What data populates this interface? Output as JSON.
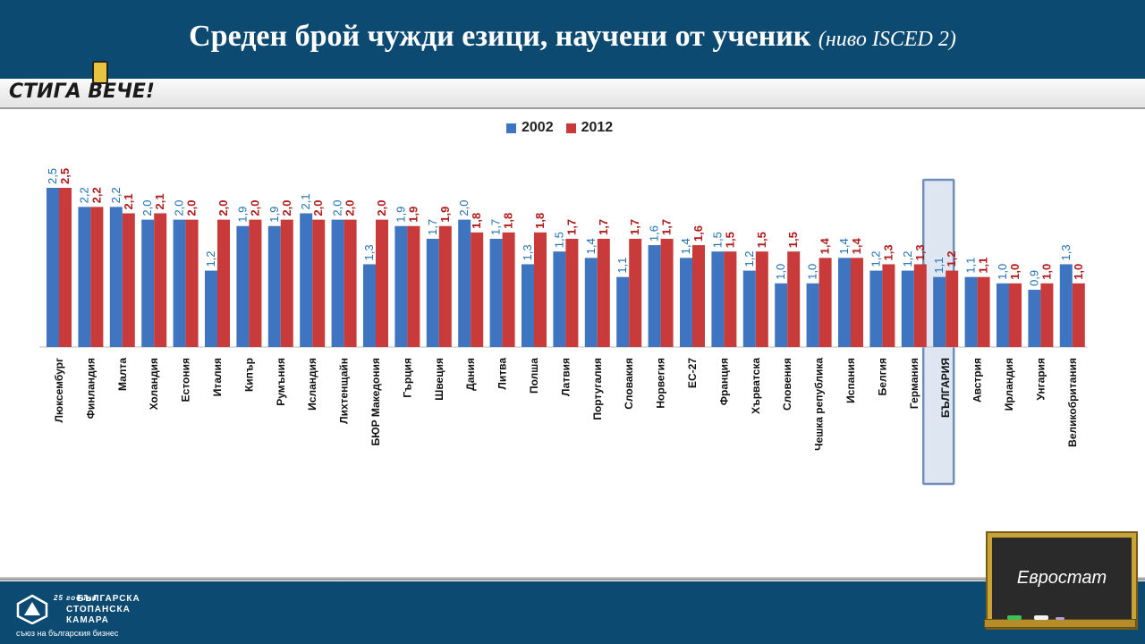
{
  "header": {
    "title": "Среден брой чужди езици, научени от ученик",
    "subtitle": "(ниво ISCED 2)"
  },
  "banner": {
    "logo_text": "СТИГА ВЕЧЕ!"
  },
  "footer": {
    "org_line1": "БЪЛГАРСКА",
    "org_line2": "СТОПАНСКА",
    "org_line3": "КАМАРА",
    "org_years": "25 години",
    "org_tagline": "съюз на българския бизнес",
    "source_label": "Евростат"
  },
  "colors": {
    "series_2002": "#3f74c0",
    "series_2012": "#c93b3b",
    "label_2002": "#1f6fae",
    "label_2012": "#b01c1c",
    "highlight_border": "#6f8fb8"
  },
  "chart_data": {
    "type": "bar",
    "title": "Среден брой чужди езици, научени от ученик (ниво ISCED 2)",
    "categories": [
      "Люксембург",
      "Финландия",
      "Малта",
      "Холандия",
      "Естония",
      "Италия",
      "Кипър",
      "Румъния",
      "Исландия",
      "Лихтенщайн",
      "БЮР Македония",
      "Гърция",
      "Швеция",
      "Дания",
      "Литва",
      "Полша",
      "Латвия",
      "Португалия",
      "Словакия",
      "Норвегия",
      "ЕС-27",
      "Франция",
      "Хърватска",
      "Словения",
      "Чешка република",
      "Испания",
      "Белгия",
      "Германия",
      "БЪЛГАРИЯ",
      "Австрия",
      "Ирландия",
      "Унгария",
      "Великобритания"
    ],
    "series": [
      {
        "name": "2002",
        "values": [
          2.5,
          2.2,
          2.2,
          2.0,
          2.0,
          1.2,
          1.9,
          1.9,
          2.1,
          2.0,
          1.3,
          1.9,
          1.7,
          2.0,
          1.7,
          1.3,
          1.5,
          1.4,
          1.1,
          1.6,
          1.4,
          1.5,
          1.2,
          1.0,
          1.0,
          1.4,
          1.2,
          1.2,
          1.1,
          1.1,
          1.0,
          0.9,
          1.3
        ]
      },
      {
        "name": "2012",
        "values": [
          2.5,
          2.2,
          2.1,
          2.1,
          2.0,
          2.0,
          2.0,
          2.0,
          2.0,
          2.0,
          2.0,
          1.9,
          1.9,
          1.8,
          1.8,
          1.8,
          1.7,
          1.7,
          1.7,
          1.7,
          1.6,
          1.5,
          1.5,
          1.5,
          1.4,
          1.4,
          1.3,
          1.3,
          1.2,
          1.1,
          1.0,
          1.0,
          1.0
        ]
      }
    ],
    "data_labels": {
      "2002": [
        "2,5",
        "2,2",
        "2,2",
        "2,0",
        "2,0",
        "1,2",
        "1,9",
        "1,9",
        "2,1",
        "2,0",
        "1,3",
        "1,9",
        "1,7",
        "2,0",
        "1,7",
        "1,3",
        "1,5",
        "1,4",
        "1,1",
        "1,6",
        "1,4",
        "1,5",
        "1,2",
        "1,0",
        "1,0",
        "1,4",
        "1,2",
        "1,2",
        "1,1",
        "1,1",
        "1,0",
        "0,9",
        "1,3"
      ],
      "2012": [
        "2,5",
        "2,2",
        "2,1",
        "2,1",
        "2,0",
        "2,0",
        "2,0",
        "2,0",
        "2,0",
        "2,0",
        "2,0",
        "1,9",
        "1,9",
        "1,8",
        "1,8",
        "1,8",
        "1,7",
        "1,7",
        "1,7",
        "1,7",
        "1,6",
        "1,5",
        "1,5",
        "1,5",
        "1,4",
        "1,4",
        "1,3",
        "1,3",
        "1,2",
        "1,1",
        "1,0",
        "1,0",
        "1,0"
      ]
    },
    "highlight_category": "БЪЛГАРИЯ",
    "ylim": [
      0,
      2.5
    ],
    "grid": false,
    "legend_position": "top-center"
  }
}
